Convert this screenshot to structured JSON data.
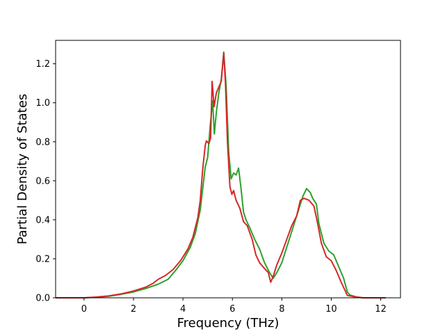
{
  "chart_data": {
    "type": "line",
    "title": "",
    "xlabel": "Frequency (THz)",
    "ylabel": "Partial Density of States",
    "xlim": [
      -1.15,
      12.8
    ],
    "ylim": [
      0.0,
      1.32
    ],
    "xticks": [
      0,
      2,
      4,
      6,
      8,
      10,
      12
    ],
    "yticks": [
      0.0,
      0.2,
      0.4,
      0.6,
      0.8,
      1.0,
      1.2
    ],
    "xtick_labels": [
      "0",
      "2",
      "4",
      "6",
      "8",
      "10",
      "12"
    ],
    "ytick_labels": [
      "0.0",
      "0.2",
      "0.4",
      "0.6",
      "0.8",
      "1.0",
      "1.2"
    ],
    "grid": false,
    "series": [
      {
        "color": "#2ca02c",
        "points": [
          [
            -1.15,
            0.0
          ],
          [
            0.0,
            0.0
          ],
          [
            0.5,
            0.003
          ],
          [
            1.0,
            0.008
          ],
          [
            1.5,
            0.018
          ],
          [
            2.0,
            0.03
          ],
          [
            2.5,
            0.048
          ],
          [
            3.0,
            0.07
          ],
          [
            3.4,
            0.095
          ],
          [
            3.7,
            0.14
          ],
          [
            4.0,
            0.19
          ],
          [
            4.3,
            0.26
          ],
          [
            4.5,
            0.33
          ],
          [
            4.7,
            0.45
          ],
          [
            4.8,
            0.56
          ],
          [
            4.9,
            0.67
          ],
          [
            5.0,
            0.72
          ],
          [
            5.1,
            0.88
          ],
          [
            5.2,
            1.01
          ],
          [
            5.27,
            0.84
          ],
          [
            5.35,
            0.95
          ],
          [
            5.45,
            1.05
          ],
          [
            5.55,
            1.12
          ],
          [
            5.65,
            1.26
          ],
          [
            5.75,
            1.08
          ],
          [
            5.85,
            0.75
          ],
          [
            5.95,
            0.61
          ],
          [
            6.05,
            0.64
          ],
          [
            6.15,
            0.63
          ],
          [
            6.25,
            0.665
          ],
          [
            6.35,
            0.56
          ],
          [
            6.45,
            0.44
          ],
          [
            6.55,
            0.4
          ],
          [
            6.7,
            0.36
          ],
          [
            6.9,
            0.3
          ],
          [
            7.1,
            0.25
          ],
          [
            7.3,
            0.18
          ],
          [
            7.5,
            0.13
          ],
          [
            7.65,
            0.1
          ],
          [
            7.8,
            0.13
          ],
          [
            8.0,
            0.18
          ],
          [
            8.2,
            0.26
          ],
          [
            8.4,
            0.34
          ],
          [
            8.6,
            0.42
          ],
          [
            8.75,
            0.48
          ],
          [
            8.85,
            0.52
          ],
          [
            9.0,
            0.56
          ],
          [
            9.15,
            0.54
          ],
          [
            9.25,
            0.51
          ],
          [
            9.4,
            0.48
          ],
          [
            9.5,
            0.38
          ],
          [
            9.7,
            0.28
          ],
          [
            9.9,
            0.24
          ],
          [
            10.1,
            0.22
          ],
          [
            10.3,
            0.16
          ],
          [
            10.5,
            0.1
          ],
          [
            10.65,
            0.03
          ],
          [
            10.75,
            0.015
          ],
          [
            11.0,
            0.005
          ],
          [
            11.3,
            0.0
          ],
          [
            12.2,
            0.0
          ]
        ]
      },
      {
        "color": "#d62728",
        "points": [
          [
            -1.15,
            0.0
          ],
          [
            0.0,
            0.0
          ],
          [
            0.5,
            0.004
          ],
          [
            1.0,
            0.01
          ],
          [
            1.5,
            0.02
          ],
          [
            2.0,
            0.035
          ],
          [
            2.5,
            0.055
          ],
          [
            2.8,
            0.075
          ],
          [
            3.0,
            0.095
          ],
          [
            3.3,
            0.115
          ],
          [
            3.6,
            0.145
          ],
          [
            3.9,
            0.19
          ],
          [
            4.2,
            0.25
          ],
          [
            4.4,
            0.31
          ],
          [
            4.6,
            0.41
          ],
          [
            4.7,
            0.5
          ],
          [
            4.8,
            0.66
          ],
          [
            4.9,
            0.78
          ],
          [
            4.95,
            0.805
          ],
          [
            5.05,
            0.79
          ],
          [
            5.12,
            0.82
          ],
          [
            5.18,
            1.11
          ],
          [
            5.26,
            0.98
          ],
          [
            5.35,
            1.05
          ],
          [
            5.45,
            1.08
          ],
          [
            5.55,
            1.11
          ],
          [
            5.65,
            1.255
          ],
          [
            5.72,
            1.1
          ],
          [
            5.8,
            0.8
          ],
          [
            5.9,
            0.57
          ],
          [
            5.98,
            0.53
          ],
          [
            6.05,
            0.55
          ],
          [
            6.15,
            0.5
          ],
          [
            6.3,
            0.46
          ],
          [
            6.45,
            0.39
          ],
          [
            6.6,
            0.37
          ],
          [
            6.8,
            0.3
          ],
          [
            6.95,
            0.22
          ],
          [
            7.1,
            0.18
          ],
          [
            7.3,
            0.15
          ],
          [
            7.45,
            0.13
          ],
          [
            7.55,
            0.08
          ],
          [
            7.65,
            0.11
          ],
          [
            7.8,
            0.17
          ],
          [
            8.0,
            0.23
          ],
          [
            8.2,
            0.3
          ],
          [
            8.4,
            0.37
          ],
          [
            8.6,
            0.42
          ],
          [
            8.75,
            0.5
          ],
          [
            8.9,
            0.51
          ],
          [
            9.1,
            0.5
          ],
          [
            9.3,
            0.47
          ],
          [
            9.45,
            0.38
          ],
          [
            9.6,
            0.28
          ],
          [
            9.8,
            0.21
          ],
          [
            10.0,
            0.19
          ],
          [
            10.2,
            0.14
          ],
          [
            10.4,
            0.08
          ],
          [
            10.55,
            0.04
          ],
          [
            10.65,
            0.012
          ],
          [
            11.0,
            0.004
          ],
          [
            11.3,
            0.0
          ],
          [
            12.2,
            0.0
          ]
        ]
      }
    ]
  }
}
